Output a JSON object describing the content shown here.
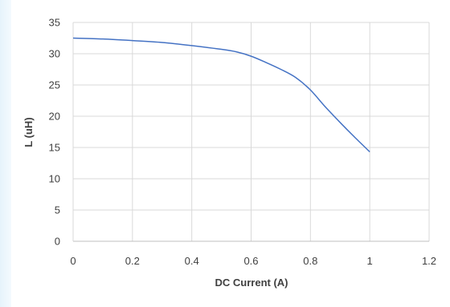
{
  "chart_data": {
    "type": "line",
    "title": "",
    "xlabel": "DC Current (A)",
    "ylabel": "L (uH)",
    "xlim": [
      0,
      1.2
    ],
    "ylim": [
      0,
      35
    ],
    "x_ticks": [
      "0",
      "0.2",
      "0.4",
      "0.6",
      "0.8",
      "1",
      "1.2"
    ],
    "y_ticks": [
      "0",
      "5",
      "10",
      "15",
      "20",
      "25",
      "30",
      "35"
    ],
    "grid": true,
    "legend": "none",
    "line_color": "#4472c4",
    "series": [
      {
        "x": [
          0,
          0.1,
          0.2,
          0.3,
          0.4,
          0.5,
          0.55,
          0.6,
          0.65,
          0.7,
          0.75,
          0.8,
          0.85,
          0.9,
          0.95,
          1.0
        ],
        "y": [
          32.5,
          32.35,
          32.1,
          31.8,
          31.3,
          30.7,
          30.3,
          29.6,
          28.6,
          27.5,
          26.2,
          24.2,
          21.5,
          19.0,
          16.6,
          14.3
        ]
      }
    ]
  }
}
